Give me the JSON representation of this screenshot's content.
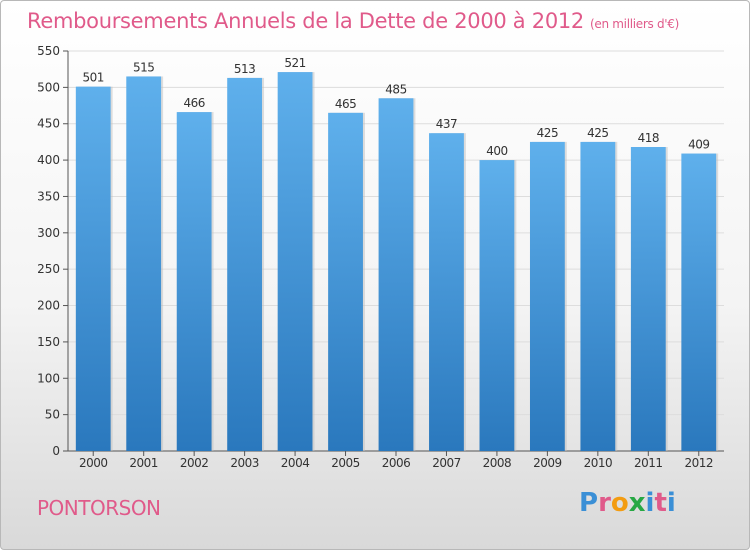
{
  "chart_data": {
    "type": "bar",
    "title": "Remboursements Annuels de la Dette de 2000 à 2012",
    "subtitle": "(en milliers d'€)",
    "categories": [
      "2000",
      "2001",
      "2002",
      "2003",
      "2004",
      "2005",
      "2006",
      "2007",
      "2008",
      "2009",
      "2010",
      "2011",
      "2012"
    ],
    "values": [
      501,
      515,
      466,
      513,
      521,
      465,
      485,
      437,
      400,
      425,
      425,
      418,
      409
    ],
    "ylim": [
      0,
      550
    ],
    "yticks": [
      0,
      50,
      100,
      150,
      200,
      250,
      300,
      350,
      400,
      450,
      500,
      550
    ],
    "grid": true,
    "bar_color": "#3a8fd6",
    "title_color": "#e05a8a"
  },
  "footer": {
    "town": "PONTORSON",
    "brand": "Proxiti",
    "brand_colors": [
      "#3a8fd6",
      "#e05a8a",
      "#f39c12",
      "#27a844",
      "#3a8fd6",
      "#e05a8a",
      "#3a8fd6"
    ]
  }
}
